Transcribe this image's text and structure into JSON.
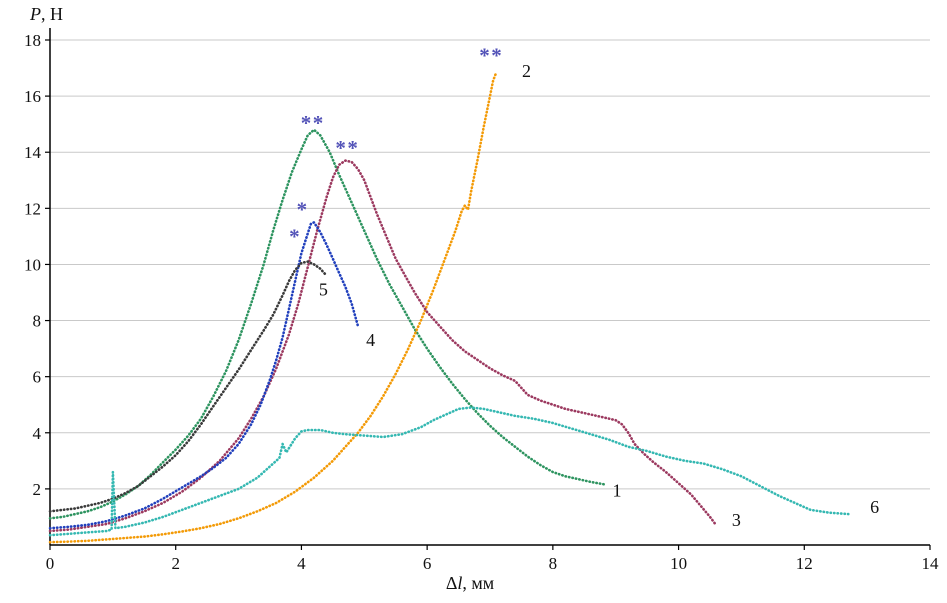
{
  "chart_data": {
    "type": "scatter",
    "title": "",
    "ylabel": "P, Н",
    "xlabel": "Δl, мм",
    "ylabel_parts": [
      {
        "text": "P",
        "italic": true
      },
      {
        "text": ", Н",
        "italic": false
      }
    ],
    "xlabel_parts": [
      {
        "text": "Δ",
        "italic": false
      },
      {
        "text": "l",
        "italic": true
      },
      {
        "text": ", мм",
        "italic": false
      }
    ],
    "xlim": [
      0,
      14
    ],
    "ylim": [
      0,
      18
    ],
    "xticks": [
      0,
      2,
      4,
      6,
      8,
      10,
      12,
      14
    ],
    "yticks": [
      2,
      4,
      6,
      8,
      10,
      12,
      14,
      16,
      18
    ],
    "grid": "horizontal",
    "grid_color": "#c9c9c9",
    "axis_color": "#000000",
    "annotation_color": "#5353b8",
    "label_color": "#111111",
    "series": [
      {
        "name": "1",
        "color": "#2e9460",
        "points": [
          [
            0,
            0.95
          ],
          [
            0.2,
            1.0
          ],
          [
            0.4,
            1.1
          ],
          [
            0.6,
            1.2
          ],
          [
            0.8,
            1.35
          ],
          [
            1.0,
            1.55
          ],
          [
            1.2,
            1.8
          ],
          [
            1.4,
            2.1
          ],
          [
            1.6,
            2.5
          ],
          [
            1.8,
            2.95
          ],
          [
            2.0,
            3.4
          ],
          [
            2.2,
            3.9
          ],
          [
            2.4,
            4.5
          ],
          [
            2.6,
            5.3
          ],
          [
            2.8,
            6.2
          ],
          [
            3.0,
            7.3
          ],
          [
            3.2,
            8.6
          ],
          [
            3.4,
            10.0
          ],
          [
            3.55,
            11.2
          ],
          [
            3.7,
            12.3
          ],
          [
            3.85,
            13.3
          ],
          [
            4.0,
            14.1
          ],
          [
            4.1,
            14.6
          ],
          [
            4.2,
            14.8
          ],
          [
            4.3,
            14.6
          ],
          [
            4.45,
            14.0
          ],
          [
            4.6,
            13.2
          ],
          [
            4.8,
            12.2
          ],
          [
            5.0,
            11.2
          ],
          [
            5.2,
            10.2
          ],
          [
            5.4,
            9.3
          ],
          [
            5.6,
            8.5
          ],
          [
            5.8,
            7.7
          ],
          [
            6.0,
            7.0
          ],
          [
            6.2,
            6.35
          ],
          [
            6.4,
            5.75
          ],
          [
            6.6,
            5.2
          ],
          [
            6.8,
            4.7
          ],
          [
            7.0,
            4.25
          ],
          [
            7.2,
            3.85
          ],
          [
            7.4,
            3.5
          ],
          [
            7.6,
            3.15
          ],
          [
            7.8,
            2.85
          ],
          [
            8.0,
            2.6
          ],
          [
            8.2,
            2.45
          ],
          [
            8.4,
            2.35
          ],
          [
            8.6,
            2.25
          ],
          [
            8.85,
            2.15
          ]
        ]
      },
      {
        "name": "2",
        "color": "#f39a06",
        "points": [
          [
            0,
            0.1
          ],
          [
            0.3,
            0.12
          ],
          [
            0.6,
            0.15
          ],
          [
            0.9,
            0.2
          ],
          [
            1.2,
            0.25
          ],
          [
            1.5,
            0.3
          ],
          [
            1.8,
            0.38
          ],
          [
            2.1,
            0.48
          ],
          [
            2.4,
            0.6
          ],
          [
            2.7,
            0.75
          ],
          [
            3.0,
            0.95
          ],
          [
            3.3,
            1.2
          ],
          [
            3.6,
            1.5
          ],
          [
            3.9,
            1.9
          ],
          [
            4.2,
            2.4
          ],
          [
            4.5,
            3.0
          ],
          [
            4.7,
            3.5
          ],
          [
            4.9,
            4.0
          ],
          [
            5.1,
            4.6
          ],
          [
            5.3,
            5.3
          ],
          [
            5.5,
            6.1
          ],
          [
            5.7,
            7.0
          ],
          [
            5.9,
            8.0
          ],
          [
            6.1,
            9.1
          ],
          [
            6.3,
            10.3
          ],
          [
            6.45,
            11.2
          ],
          [
            6.55,
            11.9
          ],
          [
            6.6,
            12.1
          ],
          [
            6.65,
            11.95
          ],
          [
            6.7,
            12.6
          ],
          [
            6.8,
            13.7
          ],
          [
            6.9,
            14.9
          ],
          [
            7.0,
            16.0
          ],
          [
            7.05,
            16.55
          ],
          [
            7.1,
            16.85
          ]
        ]
      },
      {
        "name": "3",
        "color": "#9c3a60",
        "points": [
          [
            0,
            0.5
          ],
          [
            0.3,
            0.55
          ],
          [
            0.6,
            0.65
          ],
          [
            0.9,
            0.75
          ],
          [
            1.2,
            0.95
          ],
          [
            1.5,
            1.2
          ],
          [
            1.8,
            1.5
          ],
          [
            2.1,
            1.9
          ],
          [
            2.4,
            2.4
          ],
          [
            2.7,
            3.0
          ],
          [
            3.0,
            3.8
          ],
          [
            3.2,
            4.5
          ],
          [
            3.4,
            5.3
          ],
          [
            3.6,
            6.3
          ],
          [
            3.8,
            7.5
          ],
          [
            3.95,
            8.6
          ],
          [
            4.1,
            9.9
          ],
          [
            4.25,
            11.2
          ],
          [
            4.4,
            12.4
          ],
          [
            4.5,
            13.1
          ],
          [
            4.6,
            13.55
          ],
          [
            4.7,
            13.7
          ],
          [
            4.8,
            13.65
          ],
          [
            4.9,
            13.4
          ],
          [
            5.0,
            13.0
          ],
          [
            5.1,
            12.4
          ],
          [
            5.2,
            11.8
          ],
          [
            5.35,
            11.0
          ],
          [
            5.5,
            10.2
          ],
          [
            5.65,
            9.6
          ],
          [
            5.8,
            9.0
          ],
          [
            6.0,
            8.3
          ],
          [
            6.2,
            7.8
          ],
          [
            6.4,
            7.3
          ],
          [
            6.6,
            6.9
          ],
          [
            6.8,
            6.6
          ],
          [
            7.0,
            6.3
          ],
          [
            7.2,
            6.05
          ],
          [
            7.4,
            5.85
          ],
          [
            7.5,
            5.6
          ],
          [
            7.6,
            5.35
          ],
          [
            7.8,
            5.15
          ],
          [
            8.0,
            5.0
          ],
          [
            8.2,
            4.85
          ],
          [
            8.4,
            4.75
          ],
          [
            8.6,
            4.65
          ],
          [
            8.8,
            4.55
          ],
          [
            9.0,
            4.45
          ],
          [
            9.1,
            4.3
          ],
          [
            9.2,
            4.0
          ],
          [
            9.3,
            3.6
          ],
          [
            9.45,
            3.25
          ],
          [
            9.6,
            2.95
          ],
          [
            9.8,
            2.6
          ],
          [
            10.0,
            2.2
          ],
          [
            10.2,
            1.8
          ],
          [
            10.35,
            1.4
          ],
          [
            10.5,
            1.0
          ],
          [
            10.6,
            0.7
          ]
        ]
      },
      {
        "name": "4",
        "color": "#2140bd",
        "points": [
          [
            0,
            0.6
          ],
          [
            0.3,
            0.65
          ],
          [
            0.6,
            0.72
          ],
          [
            0.9,
            0.85
          ],
          [
            1.2,
            1.05
          ],
          [
            1.5,
            1.3
          ],
          [
            1.8,
            1.65
          ],
          [
            2.1,
            2.05
          ],
          [
            2.4,
            2.45
          ],
          [
            2.6,
            2.75
          ],
          [
            2.8,
            3.1
          ],
          [
            3.0,
            3.6
          ],
          [
            3.2,
            4.3
          ],
          [
            3.35,
            5.0
          ],
          [
            3.5,
            5.9
          ],
          [
            3.6,
            6.6
          ],
          [
            3.7,
            7.4
          ],
          [
            3.8,
            8.4
          ],
          [
            3.9,
            9.4
          ],
          [
            4.0,
            10.4
          ],
          [
            4.1,
            11.1
          ],
          [
            4.15,
            11.45
          ],
          [
            4.2,
            11.5
          ],
          [
            4.3,
            11.15
          ],
          [
            4.4,
            10.7
          ],
          [
            4.5,
            10.2
          ],
          [
            4.6,
            9.7
          ],
          [
            4.7,
            9.2
          ],
          [
            4.8,
            8.6
          ],
          [
            4.9,
            7.8
          ]
        ]
      },
      {
        "name": "5",
        "color": "#3a3a3a",
        "points": [
          [
            0,
            1.2
          ],
          [
            0.2,
            1.25
          ],
          [
            0.4,
            1.3
          ],
          [
            0.6,
            1.4
          ],
          [
            0.8,
            1.5
          ],
          [
            1.0,
            1.65
          ],
          [
            1.2,
            1.85
          ],
          [
            1.4,
            2.1
          ],
          [
            1.6,
            2.45
          ],
          [
            1.8,
            2.8
          ],
          [
            2.0,
            3.2
          ],
          [
            2.2,
            3.7
          ],
          [
            2.4,
            4.3
          ],
          [
            2.6,
            4.95
          ],
          [
            2.8,
            5.6
          ],
          [
            3.0,
            6.25
          ],
          [
            3.2,
            6.95
          ],
          [
            3.4,
            7.65
          ],
          [
            3.55,
            8.2
          ],
          [
            3.7,
            8.9
          ],
          [
            3.8,
            9.4
          ],
          [
            3.9,
            9.8
          ],
          [
            4.0,
            10.05
          ],
          [
            4.1,
            10.1
          ],
          [
            4.2,
            10.0
          ],
          [
            4.3,
            9.85
          ],
          [
            4.4,
            9.6
          ]
        ]
      },
      {
        "name": "6",
        "color": "#35b8b2",
        "points": [
          [
            0,
            0.35
          ],
          [
            0.3,
            0.4
          ],
          [
            0.6,
            0.45
          ],
          [
            0.9,
            0.5
          ],
          [
            0.98,
            0.55
          ],
          [
            1.0,
            2.6
          ],
          [
            1.04,
            0.6
          ],
          [
            1.2,
            0.65
          ],
          [
            1.5,
            0.8
          ],
          [
            1.8,
            1.0
          ],
          [
            2.1,
            1.25
          ],
          [
            2.4,
            1.5
          ],
          [
            2.7,
            1.75
          ],
          [
            3.0,
            2.0
          ],
          [
            3.3,
            2.4
          ],
          [
            3.5,
            2.8
          ],
          [
            3.65,
            3.1
          ],
          [
            3.7,
            3.6
          ],
          [
            3.76,
            3.3
          ],
          [
            3.9,
            3.8
          ],
          [
            4.0,
            4.05
          ],
          [
            4.1,
            4.1
          ],
          [
            4.3,
            4.1
          ],
          [
            4.5,
            4.0
          ],
          [
            4.7,
            3.95
          ],
          [
            5.0,
            3.9
          ],
          [
            5.3,
            3.85
          ],
          [
            5.6,
            3.95
          ],
          [
            5.9,
            4.2
          ],
          [
            6.1,
            4.45
          ],
          [
            6.3,
            4.65
          ],
          [
            6.5,
            4.85
          ],
          [
            6.7,
            4.9
          ],
          [
            6.9,
            4.85
          ],
          [
            7.1,
            4.75
          ],
          [
            7.4,
            4.6
          ],
          [
            7.7,
            4.5
          ],
          [
            8.0,
            4.35
          ],
          [
            8.3,
            4.15
          ],
          [
            8.6,
            3.95
          ],
          [
            8.9,
            3.75
          ],
          [
            9.2,
            3.5
          ],
          [
            9.5,
            3.35
          ],
          [
            9.8,
            3.15
          ],
          [
            10.1,
            3.0
          ],
          [
            10.4,
            2.9
          ],
          [
            10.7,
            2.7
          ],
          [
            11.0,
            2.45
          ],
          [
            11.3,
            2.1
          ],
          [
            11.6,
            1.75
          ],
          [
            11.9,
            1.45
          ],
          [
            12.1,
            1.25
          ],
          [
            12.4,
            1.15
          ],
          [
            12.7,
            1.1
          ]
        ]
      }
    ],
    "series_labels": [
      {
        "text": "1",
        "x": 9.02,
        "y": 1.95
      },
      {
        "text": "2",
        "x": 7.58,
        "y": 16.9
      },
      {
        "text": "3",
        "x": 10.92,
        "y": 0.9
      },
      {
        "text": "4",
        "x": 5.1,
        "y": 7.3
      },
      {
        "text": "5",
        "x": 4.35,
        "y": 9.1
      },
      {
        "text": "6",
        "x": 13.12,
        "y": 1.35
      }
    ],
    "annotations": [
      {
        "text": "**",
        "x": 4.18,
        "y": 15.05
      },
      {
        "text": "**",
        "x": 4.73,
        "y": 14.15
      },
      {
        "text": "**",
        "x": 7.02,
        "y": 17.45
      },
      {
        "text": "*",
        "x": 4.02,
        "y": 11.95
      },
      {
        "text": "*",
        "x": 3.9,
        "y": 11.0
      }
    ]
  }
}
